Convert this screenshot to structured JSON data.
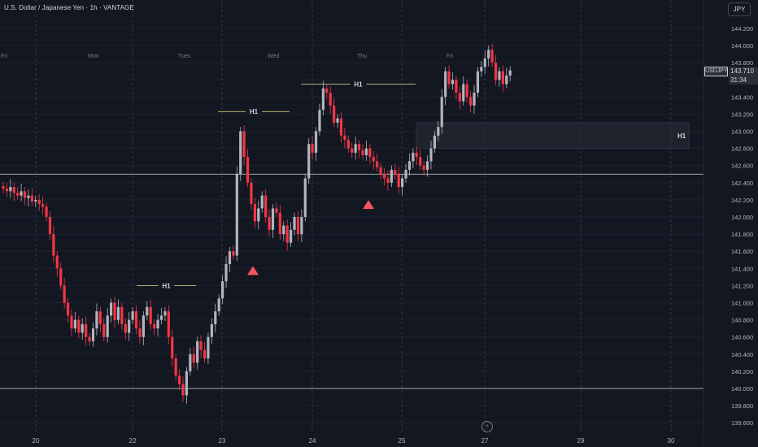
{
  "header": {
    "title": "U.S. Dollar / Japanese Yen · 1h · VANTAGE",
    "currency_button": "JPY"
  },
  "price_tag": {
    "symbol": "USDJPY",
    "price": "143.710",
    "countdown": "31:34"
  },
  "colors": {
    "background": "#131722",
    "up": "#b2b5be",
    "down": "#f23645",
    "hline": "#d1d4dc",
    "h1_line": "#f0e68c",
    "marker": "#f7525f"
  },
  "chart_data": {
    "type": "candlestick",
    "y_axis": {
      "min": 139.5,
      "max": 144.3,
      "ticks": [
        "144.200",
        "144.000",
        "143.800",
        "143.600",
        "143.400",
        "143.200",
        "143.000",
        "142.800",
        "142.600",
        "142.400",
        "142.200",
        "142.000",
        "141.800",
        "141.600",
        "141.400",
        "141.200",
        "141.000",
        "140.800",
        "140.600",
        "140.400",
        "140.200",
        "140.000",
        "139.800",
        "139.600"
      ]
    },
    "x_axis": {
      "labels": [
        "20",
        "22",
        "23",
        "24",
        "25",
        "27",
        "29",
        "30"
      ],
      "label_pos": [
        44,
        163,
        273,
        384,
        494,
        596,
        714,
        825
      ]
    },
    "week_labels": {
      "labels": [
        "Fri",
        "Mon",
        "Tues",
        "Wed",
        "Thu",
        "Fri"
      ],
      "label_pos": [
        1,
        108,
        219,
        329,
        439,
        549
      ]
    },
    "horizontal_lines": [
      142.5,
      140.0
    ],
    "h1_levels": [
      {
        "label": "H1",
        "price": 141.2,
        "x1": 168,
        "x2": 241
      },
      {
        "label": "H1",
        "price": 143.23,
        "x1": 268,
        "x2": 356
      },
      {
        "label": "H1",
        "price": 143.55,
        "x1": 370,
        "x2": 511
      }
    ],
    "h1_zone": {
      "label": "H1",
      "low": 142.8,
      "high": 143.1,
      "x1": 512,
      "x2": 847
    },
    "markers": [
      {
        "type": "triangle-up",
        "x": 311,
        "price": 141.38
      },
      {
        "type": "triangle-up",
        "x": 453,
        "price": 142.15
      }
    ],
    "candles": {
      "x_start": 4,
      "x_step": 4.42,
      "closes": [
        142.33,
        142.3,
        142.35,
        142.28,
        142.25,
        142.3,
        142.22,
        142.25,
        142.18,
        142.2,
        142.15,
        142.12,
        142.0,
        141.8,
        141.55,
        141.4,
        141.2,
        141.0,
        140.85,
        140.7,
        140.8,
        140.65,
        140.75,
        140.6,
        140.55,
        140.7,
        140.9,
        140.75,
        140.6,
        140.85,
        141.0,
        140.8,
        140.95,
        140.75,
        140.65,
        140.8,
        140.9,
        140.7,
        140.6,
        140.85,
        140.95,
        140.75,
        140.7,
        140.8,
        140.85,
        140.9,
        140.6,
        140.35,
        140.15,
        140.05,
        139.92,
        140.2,
        140.4,
        140.3,
        140.55,
        140.45,
        140.35,
        140.6,
        140.75,
        140.9,
        141.05,
        141.25,
        141.45,
        141.6,
        141.55,
        142.5,
        143.0,
        142.7,
        142.4,
        142.15,
        141.95,
        142.1,
        142.25,
        142.0,
        141.85,
        142.1,
        142.05,
        141.8,
        141.9,
        141.7,
        141.85,
        142.0,
        141.8,
        142.0,
        142.45,
        142.85,
        142.75,
        143.0,
        143.25,
        143.5,
        143.45,
        143.3,
        143.1,
        143.15,
        142.95,
        142.9,
        142.8,
        142.75,
        142.85,
        142.78,
        142.72,
        142.8,
        142.7,
        142.65,
        142.58,
        142.5,
        142.45,
        142.4,
        142.55,
        142.5,
        142.35,
        142.45,
        142.55,
        142.65,
        142.75,
        142.7,
        142.6,
        142.55,
        142.65,
        142.8,
        142.95,
        143.05,
        143.4,
        143.7,
        143.55,
        143.6,
        143.45,
        143.35,
        143.55,
        143.4,
        143.3,
        143.45,
        143.7,
        143.75,
        143.85,
        143.95,
        143.8,
        143.6,
        143.7,
        143.55,
        143.65,
        143.71
      ]
    }
  }
}
